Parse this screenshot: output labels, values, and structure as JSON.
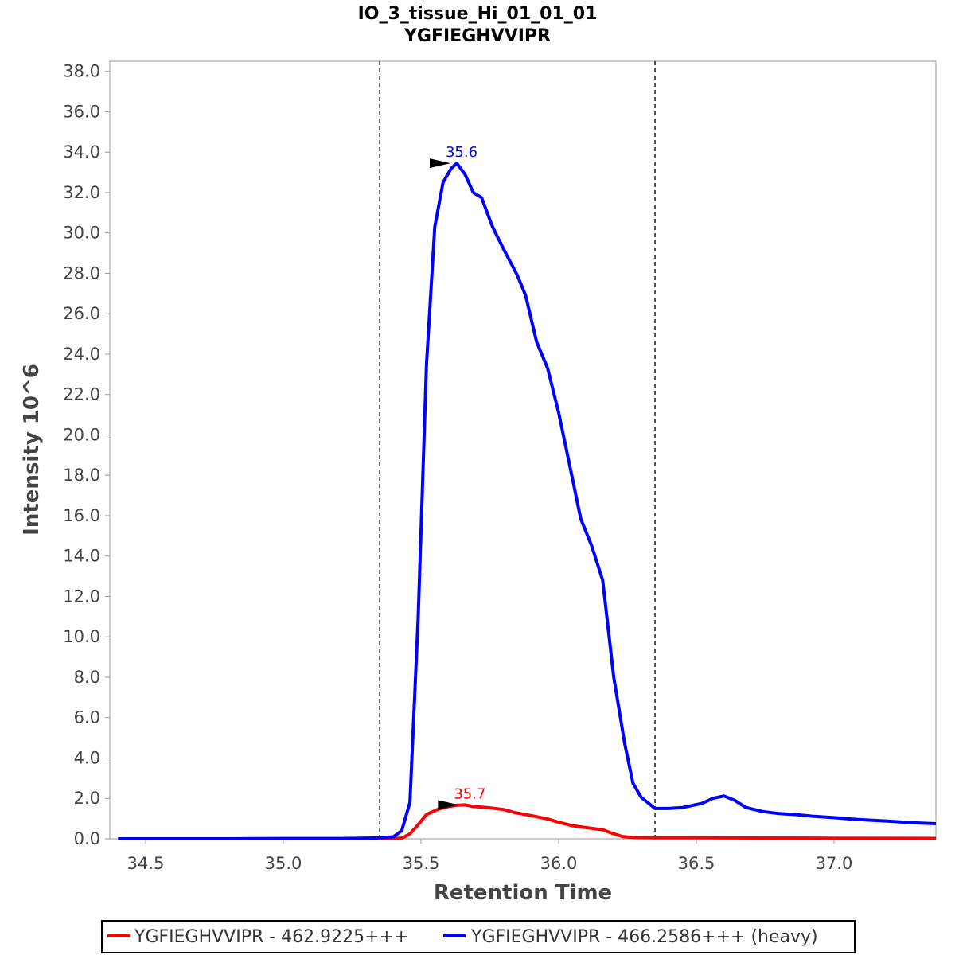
{
  "chart_data": {
    "type": "line",
    "title": "IO_3_tissue_Hi_01_01_01",
    "subtitle": "YGFIEGHVVIPR",
    "xlabel": "Retention Time",
    "ylabel": "Intensity 10^6",
    "xlim": [
      34.37,
      37.37
    ],
    "ylim": [
      0,
      38.5
    ],
    "x_ticks": [
      "34.5",
      "35.0",
      "35.5",
      "36.0",
      "36.5",
      "37.0"
    ],
    "x_tick_values": [
      34.5,
      35.0,
      35.5,
      36.0,
      36.5,
      37.0
    ],
    "y_ticks": [
      "0.0",
      "2.0",
      "4.0",
      "6.0",
      "8.0",
      "10.0",
      "12.0",
      "14.0",
      "16.0",
      "18.0",
      "20.0",
      "22.0",
      "24.0",
      "26.0",
      "28.0",
      "30.0",
      "32.0",
      "34.0",
      "36.0",
      "38.0"
    ],
    "y_tick_values": [
      0,
      2,
      4,
      6,
      8,
      10,
      12,
      14,
      16,
      18,
      20,
      22,
      24,
      26,
      28,
      30,
      32,
      34,
      36,
      38
    ],
    "grid": false,
    "legend_position": "bottom",
    "integration_boundaries": [
      35.35,
      36.35
    ],
    "series": [
      {
        "name": "YGFIEGHVVIPR - 462.9225+++",
        "color": "#ff0000",
        "peak_label": "35.7",
        "peak": [
          35.66,
          1.68
        ],
        "points": [
          [
            34.4,
            0
          ],
          [
            34.6,
            0
          ],
          [
            34.8,
            0
          ],
          [
            35.0,
            0.02
          ],
          [
            35.2,
            0.02
          ],
          [
            35.35,
            0.03
          ],
          [
            35.43,
            0.03
          ],
          [
            35.46,
            0.25
          ],
          [
            35.49,
            0.7
          ],
          [
            35.52,
            1.2
          ],
          [
            35.56,
            1.45
          ],
          [
            35.6,
            1.6
          ],
          [
            35.63,
            1.66
          ],
          [
            35.66,
            1.68
          ],
          [
            35.69,
            1.6
          ],
          [
            35.74,
            1.55
          ],
          [
            35.8,
            1.45
          ],
          [
            35.84,
            1.3
          ],
          [
            35.9,
            1.15
          ],
          [
            35.96,
            0.98
          ],
          [
            36.0,
            0.82
          ],
          [
            36.05,
            0.65
          ],
          [
            36.1,
            0.55
          ],
          [
            36.16,
            0.45
          ],
          [
            36.2,
            0.25
          ],
          [
            36.23,
            0.12
          ],
          [
            36.27,
            0.06
          ],
          [
            36.35,
            0.05
          ],
          [
            36.5,
            0.05
          ],
          [
            36.7,
            0.04
          ],
          [
            37.0,
            0.03
          ],
          [
            37.37,
            0.02
          ]
        ]
      },
      {
        "name": "YGFIEGHVVIPR - 466.2586+++ (heavy)",
        "color": "#0000ff",
        "peak_label": "35.6",
        "peak": [
          35.63,
          33.45
        ],
        "points": [
          [
            34.4,
            0
          ],
          [
            34.8,
            0
          ],
          [
            35.0,
            0
          ],
          [
            35.2,
            0
          ],
          [
            35.35,
            0.05
          ],
          [
            35.4,
            0.1
          ],
          [
            35.43,
            0.4
          ],
          [
            35.46,
            1.8
          ],
          [
            35.49,
            11
          ],
          [
            35.52,
            23.5
          ],
          [
            35.55,
            30.3
          ],
          [
            35.58,
            32.5
          ],
          [
            35.61,
            33.2
          ],
          [
            35.63,
            33.45
          ],
          [
            35.66,
            32.9
          ],
          [
            35.69,
            32.0
          ],
          [
            35.72,
            31.75
          ],
          [
            35.76,
            30.3
          ],
          [
            35.8,
            29.2
          ],
          [
            35.85,
            27.9
          ],
          [
            35.88,
            26.9
          ],
          [
            35.92,
            24.6
          ],
          [
            35.96,
            23.3
          ],
          [
            36.0,
            21.1
          ],
          [
            36.04,
            18.5
          ],
          [
            36.08,
            15.85
          ],
          [
            36.12,
            14.5
          ],
          [
            36.16,
            12.8
          ],
          [
            36.2,
            8.0
          ],
          [
            36.24,
            4.7
          ],
          [
            36.27,
            2.75
          ],
          [
            36.3,
            2.05
          ],
          [
            36.35,
            1.5
          ],
          [
            36.4,
            1.5
          ],
          [
            36.45,
            1.55
          ],
          [
            36.52,
            1.75
          ],
          [
            36.56,
            2.0
          ],
          [
            36.6,
            2.12
          ],
          [
            36.64,
            1.9
          ],
          [
            36.68,
            1.55
          ],
          [
            36.74,
            1.35
          ],
          [
            36.8,
            1.25
          ],
          [
            36.86,
            1.2
          ],
          [
            36.92,
            1.12
          ],
          [
            37.0,
            1.05
          ],
          [
            37.06,
            0.98
          ],
          [
            37.12,
            0.93
          ],
          [
            37.2,
            0.87
          ],
          [
            37.28,
            0.8
          ],
          [
            37.37,
            0.75
          ]
        ]
      }
    ]
  }
}
